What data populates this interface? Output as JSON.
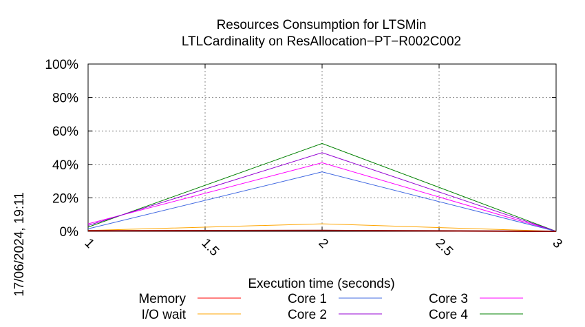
{
  "chart_data": {
    "type": "line",
    "title": "Resources Consumption for LTSMin",
    "subtitle": "LTLCardinality on ResAllocation−PT−R002C002",
    "xlabel": "Execution time (seconds)",
    "ylabel": "",
    "timestamp": "17/06/2024, 19:11",
    "xlim": [
      1,
      3
    ],
    "ylim": [
      0,
      100
    ],
    "x_ticks": [
      "1",
      "1.5",
      "2",
      "2.5",
      "3"
    ],
    "y_ticks": [
      "0%",
      "20%",
      "40%",
      "60%",
      "80%",
      "100%"
    ],
    "grid": true,
    "legend_position": "bottom",
    "x": [
      1,
      2,
      3
    ],
    "series": [
      {
        "name": "Memory",
        "color": "#ff0000",
        "values": [
          0.3,
          0.5,
          0
        ]
      },
      {
        "name": "I/O wait",
        "color": "#ffa500",
        "values": [
          0.5,
          4.5,
          0
        ]
      },
      {
        "name": "Core 1",
        "color": "#4169e1",
        "values": [
          1.5,
          35.5,
          0
        ]
      },
      {
        "name": "Core 2",
        "color": "#9400d3",
        "values": [
          3.5,
          47,
          0
        ]
      },
      {
        "name": "Core 3",
        "color": "#ff00ff",
        "values": [
          4.5,
          41,
          0
        ]
      },
      {
        "name": "Core 4",
        "color": "#008000",
        "values": [
          2.5,
          52.5,
          0
        ]
      }
    ]
  }
}
